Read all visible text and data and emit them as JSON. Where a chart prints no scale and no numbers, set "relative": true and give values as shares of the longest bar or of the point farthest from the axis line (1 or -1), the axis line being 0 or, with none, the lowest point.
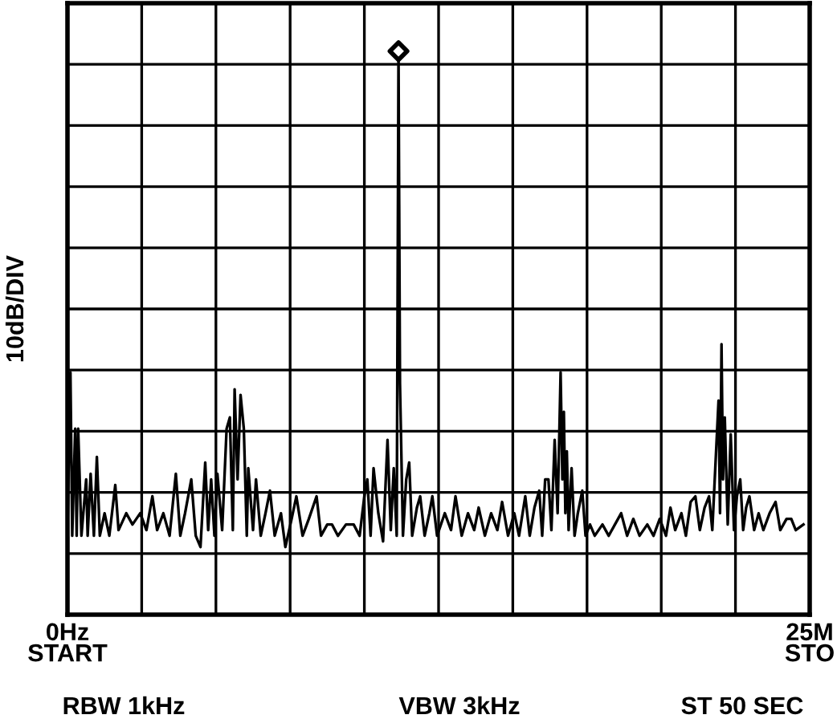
{
  "chart_data": {
    "type": "line",
    "relative": true,
    "ylabel": "10dB/DIV",
    "xlim": [
      0,
      25
    ],
    "xticks": [
      {
        "value": 0,
        "label": "0Hz\nSTART"
      },
      {
        "value": 2.5,
        "label": null
      },
      {
        "value": 5,
        "label": null
      },
      {
        "value": 7.5,
        "label": null
      },
      {
        "value": 10,
        "label": null
      },
      {
        "value": 12.5,
        "label": null
      },
      {
        "value": 15,
        "label": null
      },
      {
        "value": 17.5,
        "label": null
      },
      {
        "value": 20,
        "label": null
      },
      {
        "value": 22.5,
        "label": null
      },
      {
        "value": 25,
        "label": "25M\nSTO"
      }
    ],
    "grid": true,
    "legend": false,
    "annotations": [
      "RBW 1kHz",
      "VBW 3kHz",
      "ST 50 SEC"
    ],
    "series": [
      {
        "color": "#000000",
        "marker": "none",
        "x": [
          0,
          0.1,
          0.16,
          0.26,
          0.31,
          0.36,
          0.47,
          0.63,
          0.68,
          0.78,
          0.89,
          0.99,
          1.09,
          1.25,
          1.41,
          1.61,
          1.72,
          1.98,
          2.19,
          2.45,
          2.66,
          2.86,
          3.02,
          3.23,
          3.44,
          3.65,
          3.8,
          3.96,
          4.17,
          4.32,
          4.48,
          4.64,
          4.74,
          4.84,
          4.95,
          5.05,
          5.21,
          5.36,
          5.47,
          5.57,
          5.63,
          5.73,
          5.83,
          5.94,
          6.04,
          6.09,
          6.25,
          6.35,
          6.51,
          6.67,
          6.82,
          6.98,
          7.19,
          7.34,
          7.55,
          7.71,
          7.92,
          8.13,
          8.39,
          8.54,
          8.75,
          8.91,
          9.11,
          9.38,
          9.64,
          9.84,
          10.0,
          10.1,
          10.21,
          10.31,
          10.47,
          10.63,
          10.78,
          10.89,
          10.99,
          11.09,
          11.15,
          11.2,
          11.3,
          11.41,
          11.51,
          11.61,
          11.77,
          11.88,
          12.03,
          12.19,
          12.29,
          12.45,
          12.71,
          12.92,
          13.07,
          13.28,
          13.49,
          13.7,
          13.85,
          14.06,
          14.27,
          14.48,
          14.64,
          14.84,
          15.05,
          15.21,
          15.42,
          15.57,
          15.73,
          15.89,
          15.99,
          16.09,
          16.2,
          16.3,
          16.41,
          16.51,
          16.61,
          16.67,
          16.72,
          16.77,
          16.82,
          16.88,
          16.98,
          17.08,
          17.19,
          17.34,
          17.45,
          17.6,
          17.76,
          18.02,
          18.23,
          18.44,
          18.65,
          18.85,
          19.06,
          19.27,
          19.53,
          19.74,
          19.95,
          20.16,
          20.31,
          20.47,
          20.68,
          20.83,
          20.99,
          21.15,
          21.3,
          21.46,
          21.61,
          21.72,
          21.82,
          21.93,
          21.98,
          22.03,
          22.08,
          22.14,
          22.24,
          22.34,
          22.45,
          22.55,
          22.66,
          22.76,
          22.86,
          22.97,
          23.13,
          23.28,
          23.44,
          23.65,
          23.85,
          24.01,
          24.22,
          24.38,
          24.53,
          24.79
        ],
        "values": [
          0.15,
          0.43,
          0.14,
          0.33,
          0.14,
          0.33,
          0.14,
          0.24,
          0.14,
          0.25,
          0.14,
          0.28,
          0.14,
          0.18,
          0.14,
          0.23,
          0.15,
          0.18,
          0.16,
          0.18,
          0.15,
          0.21,
          0.15,
          0.18,
          0.14,
          0.25,
          0.14,
          0.18,
          0.24,
          0.14,
          0.12,
          0.27,
          0.15,
          0.24,
          0.14,
          0.25,
          0.15,
          0.33,
          0.35,
          0.15,
          0.4,
          0.24,
          0.39,
          0.33,
          0.14,
          0.26,
          0.15,
          0.24,
          0.14,
          0.18,
          0.22,
          0.14,
          0.18,
          0.12,
          0.17,
          0.21,
          0.14,
          0.17,
          0.21,
          0.14,
          0.16,
          0.16,
          0.14,
          0.16,
          0.16,
          0.14,
          0.21,
          0.24,
          0.14,
          0.26,
          0.18,
          0.13,
          0.31,
          0.15,
          0.26,
          0.14,
          1.0,
          0.41,
          0.14,
          0.24,
          0.27,
          0.14,
          0.19,
          0.21,
          0.14,
          0.18,
          0.21,
          0.14,
          0.18,
          0.15,
          0.21,
          0.14,
          0.18,
          0.15,
          0.19,
          0.14,
          0.18,
          0.15,
          0.2,
          0.14,
          0.18,
          0.14,
          0.21,
          0.14,
          0.19,
          0.22,
          0.14,
          0.24,
          0.24,
          0.15,
          0.31,
          0.18,
          0.43,
          0.24,
          0.36,
          0.18,
          0.29,
          0.15,
          0.26,
          0.14,
          0.18,
          0.22,
          0.14,
          0.16,
          0.14,
          0.16,
          0.14,
          0.16,
          0.18,
          0.14,
          0.17,
          0.14,
          0.16,
          0.14,
          0.17,
          0.14,
          0.19,
          0.15,
          0.18,
          0.14,
          0.2,
          0.21,
          0.15,
          0.19,
          0.21,
          0.15,
          0.26,
          0.38,
          0.18,
          0.48,
          0.24,
          0.35,
          0.16,
          0.32,
          0.15,
          0.21,
          0.24,
          0.15,
          0.19,
          0.21,
          0.15,
          0.18,
          0.15,
          0.18,
          0.2,
          0.15,
          0.17,
          0.17,
          0.15,
          0.16
        ]
      },
      {
        "type": "scatter",
        "color": "#000000",
        "marker": "diamond",
        "x": [
          11.15
        ],
        "values": [
          1.0
        ]
      }
    ]
  }
}
